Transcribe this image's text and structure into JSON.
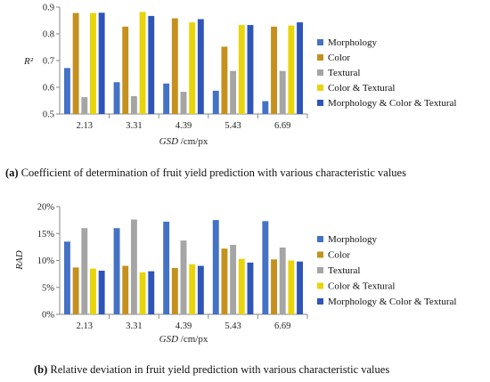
{
  "chart_data": [
    {
      "id": "a",
      "type": "bar",
      "ylabel": "R²",
      "xlabel_italic": "GSD",
      "xlabel_rest": " /cm/px",
      "ylim": [
        0.5,
        0.9
      ],
      "yticks": [
        0.5,
        0.6,
        0.7,
        0.8,
        0.9
      ],
      "ytick_labels": [
        "0.5",
        "0.6",
        "0.7",
        "0.8",
        "0.9"
      ],
      "categories": [
        "2.13",
        "3.31",
        "4.39",
        "5.43",
        "6.69"
      ],
      "grid": false,
      "legend_position": "right",
      "series": [
        {
          "name": "Morphology",
          "color": "#4472c4",
          "values": [
            0.672,
            0.619,
            0.614,
            0.587,
            0.548
          ]
        },
        {
          "name": "Color",
          "color": "#c5901e",
          "values": [
            0.878,
            0.827,
            0.858,
            0.752,
            0.827
          ]
        },
        {
          "name": "Textural",
          "color": "#a5a5a5",
          "values": [
            0.563,
            0.567,
            0.583,
            0.661,
            0.661
          ]
        },
        {
          "name": "Color & Textural",
          "color": "#e8d40a",
          "values": [
            0.878,
            0.882,
            0.843,
            0.833,
            0.831
          ]
        },
        {
          "name": "Morphology & Color & Textural",
          "color": "#2e55b8",
          "values": [
            0.879,
            0.867,
            0.855,
            0.833,
            0.843
          ]
        }
      ],
      "caption_letter": "(a)",
      "caption_text": " Coefficient of determination of fruit yield prediction with various characteristic values"
    },
    {
      "id": "b",
      "type": "bar",
      "ylabel": "RAD",
      "xlabel_italic": "GSD",
      "xlabel_rest": " /cm/px",
      "ylim": [
        0,
        20
      ],
      "yticks": [
        0,
        5,
        10,
        15,
        20
      ],
      "ytick_labels": [
        "0%",
        "5%",
        "10%",
        "15%",
        "20%"
      ],
      "categories": [
        "2.13",
        "3.31",
        "4.39",
        "5.43",
        "6.69"
      ],
      "grid": false,
      "legend_position": "right",
      "series": [
        {
          "name": "Morphology",
          "color": "#4472c4",
          "values": [
            13.5,
            16.0,
            17.2,
            17.5,
            17.3
          ]
        },
        {
          "name": "Color",
          "color": "#c5901e",
          "values": [
            8.7,
            9.0,
            8.6,
            12.2,
            10.2
          ]
        },
        {
          "name": "Textural",
          "color": "#a5a5a5",
          "values": [
            16.0,
            17.6,
            13.7,
            12.9,
            12.4
          ]
        },
        {
          "name": "Color & Textural",
          "color": "#e8d40a",
          "values": [
            8.5,
            7.8,
            9.3,
            10.3,
            10.0
          ]
        },
        {
          "name": "Morphology & Color & Textural",
          "color": "#2e55b8",
          "values": [
            8.1,
            8.0,
            9.0,
            9.6,
            9.8
          ]
        }
      ],
      "caption_letter": "(b)",
      "caption_text": " Relative deviation in fruit yield prediction with various characteristic values"
    }
  ]
}
